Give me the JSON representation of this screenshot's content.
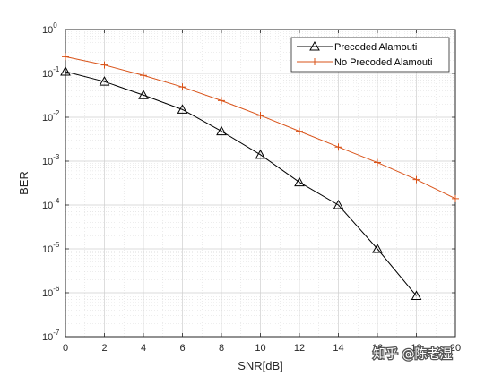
{
  "chart_data": {
    "type": "line",
    "xlabel": "SNR[dB]",
    "ylabel": "BER",
    "xlim": [
      0,
      20
    ],
    "ylim_log10": [
      -7,
      0
    ],
    "yscale": "log",
    "grid": true,
    "minor_grid": true,
    "legend_position": "top-right",
    "x_ticks": [
      "0",
      "2",
      "4",
      "6",
      "8",
      "10",
      "12",
      "14",
      "16",
      "18",
      "20"
    ],
    "y_tick_exponents": [
      "0",
      "-1",
      "-2",
      "-3",
      "-4",
      "-5",
      "-6",
      "-7"
    ],
    "y_tick_base": "10",
    "series": [
      {
        "name": "Precoded Alamouti",
        "color": "#000000",
        "marker": "triangle",
        "x": [
          0,
          2,
          4,
          6,
          8,
          10,
          12,
          14,
          16,
          18
        ],
        "y": [
          0.11,
          0.065,
          0.032,
          0.015,
          0.0048,
          0.0014,
          0.00033,
          0.0001,
          1e-05,
          8.5e-07
        ]
      },
      {
        "name": "No Precoded Alamouti",
        "color": "#D95319",
        "marker": "plus",
        "x": [
          0,
          2,
          4,
          6,
          8,
          10,
          12,
          14,
          16,
          18,
          20
        ],
        "y": [
          0.24,
          0.155,
          0.09,
          0.049,
          0.024,
          0.011,
          0.0048,
          0.0021,
          0.00093,
          0.00038,
          0.00014
        ]
      }
    ]
  },
  "watermark": "知乎 @陈老湿"
}
